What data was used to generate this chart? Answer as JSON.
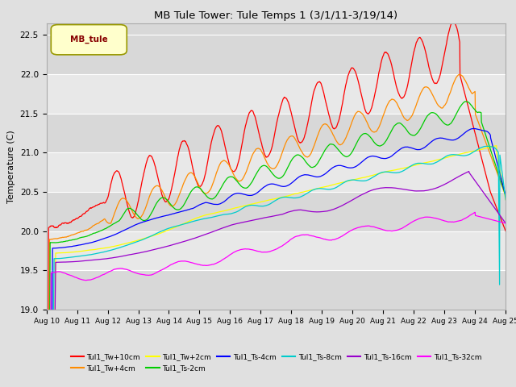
{
  "title": "MB Tule Tower: Tule Temps 1 (3/1/11-3/19/14)",
  "ylabel": "Temperature (C)",
  "ylim": [
    19.0,
    22.65
  ],
  "yticks": [
    19.0,
    19.5,
    20.0,
    20.5,
    21.0,
    21.5,
    22.0,
    22.5
  ],
  "bg_color": "#e0e0e0",
  "band_colors": [
    "#e8e8e8",
    "#d8d8d8"
  ],
  "legend_box_label": "MB_tule",
  "series": [
    {
      "label": "Tul1_Tw+10cm",
      "color": "#ff0000"
    },
    {
      "label": "Tul1_Tw+4cm",
      "color": "#ff8c00"
    },
    {
      "label": "Tul1_Tw+2cm",
      "color": "#ffff00"
    },
    {
      "label": "Tul1_Ts-2cm",
      "color": "#00cc00"
    },
    {
      "label": "Tul1_Ts-4cm",
      "color": "#0000ff"
    },
    {
      "label": "Tul1_Ts-8cm",
      "color": "#00cccc"
    },
    {
      "label": "Tul1_Ts-16cm",
      "color": "#9900cc"
    },
    {
      "label": "Tul1_Ts-32cm",
      "color": "#ff00ff"
    }
  ]
}
